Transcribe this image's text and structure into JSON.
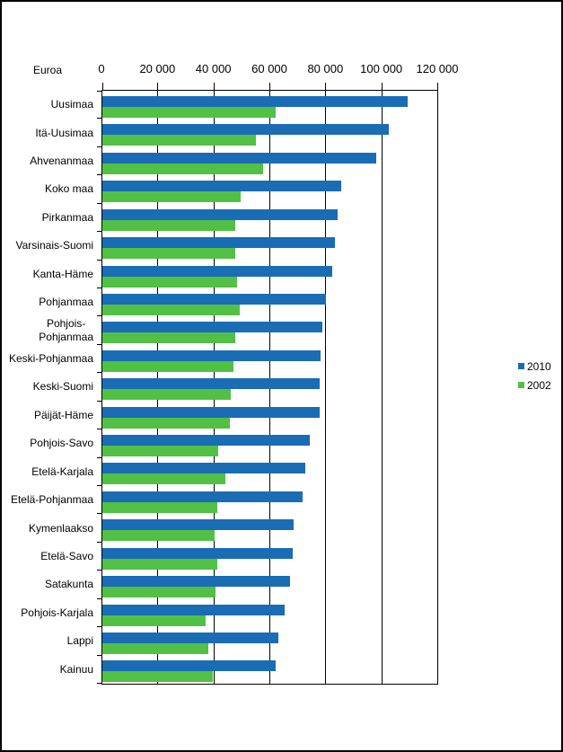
{
  "unit_label": "Euroa",
  "chart_data": {
    "type": "bar",
    "orientation": "horizontal",
    "unit_label": "Euroa",
    "xlim": [
      0,
      120000
    ],
    "x_ticks": [
      "0",
      "20 000",
      "40 000",
      "60 000",
      "80 000",
      "100 000",
      "120 000"
    ],
    "grid": "vertical gridlines every 20000, black, behind bars",
    "legend_position": "right-middle",
    "categories": [
      "Uusimaa",
      "Itä-Uusimaa",
      "Ahvenanmaa",
      "Koko maa",
      "Pirkanmaa",
      "Varsinais-Suomi",
      "Kanta-Häme",
      "Pohjanmaa",
      "Pohjois-\nPohjanmaa",
      "Keski-Pohjanmaa",
      "Keski-Suomi",
      "Päijät-Häme",
      "Pohjois-Savo",
      "Etelä-Karjala",
      "Etelä-Pohjanmaa",
      "Kymenlaakso",
      "Etelä-Savo",
      "Satakunta",
      "Pohjois-Karjala",
      "Lappi",
      "Kainuu"
    ],
    "series": [
      {
        "name": "2010",
        "color": "#1a6cb5",
        "values": [
          109000,
          102500,
          98000,
          85500,
          84000,
          83000,
          82000,
          80000,
          78500,
          78000,
          77500,
          77500,
          74000,
          72500,
          71500,
          68500,
          68000,
          67000,
          65000,
          63000,
          62000
        ]
      },
      {
        "name": "2002",
        "color": "#52c044",
        "values": [
          62000,
          55000,
          57500,
          49500,
          47500,
          47500,
          48000,
          49000,
          47500,
          47000,
          46000,
          45500,
          41500,
          44000,
          41000,
          40000,
          41000,
          40500,
          37000,
          38000,
          39500
        ]
      }
    ]
  }
}
